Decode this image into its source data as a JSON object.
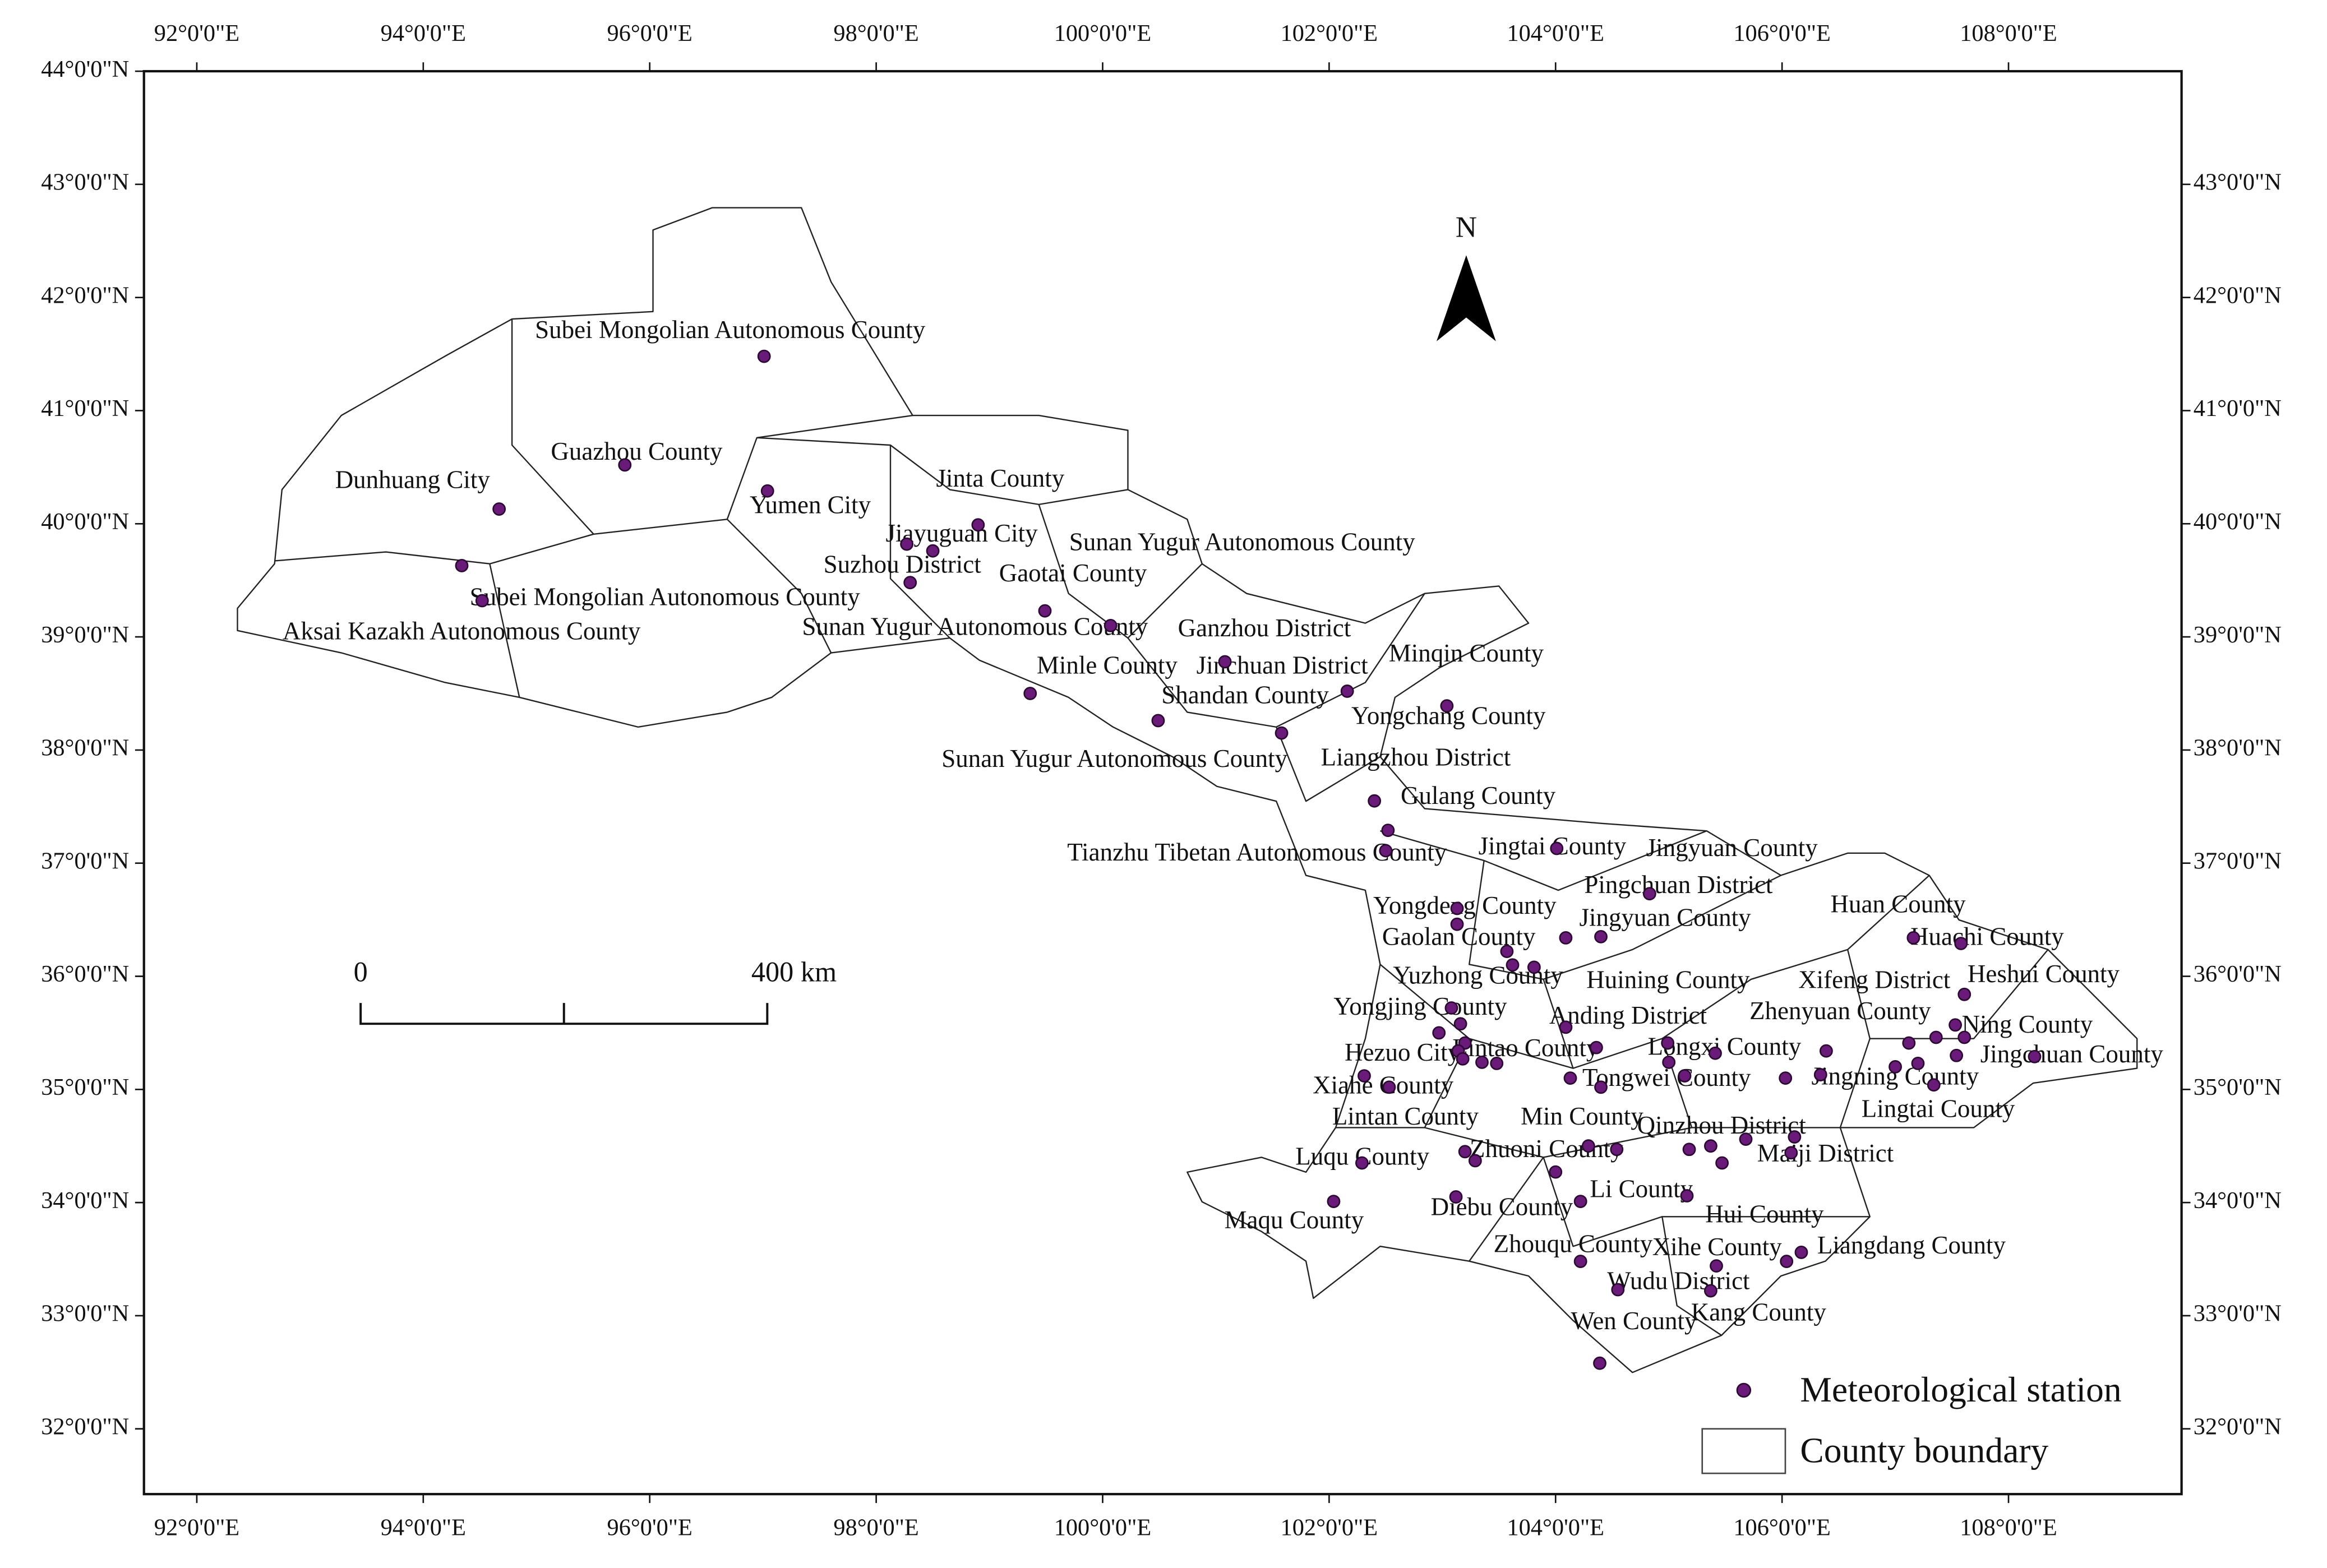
{
  "axes": {
    "lon_ticks": [
      {
        "value": 92,
        "label": "92°0'0\"E"
      },
      {
        "value": 94,
        "label": "94°0'0\"E"
      },
      {
        "value": 96,
        "label": "96°0'0\"E"
      },
      {
        "value": 98,
        "label": "98°0'0\"E"
      },
      {
        "value": 100,
        "label": "100°0'0\"E"
      },
      {
        "value": 102,
        "label": "102°0'0\"E"
      },
      {
        "value": 104,
        "label": "104°0'0\"E"
      },
      {
        "value": 106,
        "label": "106°0'0\"E"
      },
      {
        "value": 108,
        "label": "108°0'0\"E"
      }
    ],
    "lat_ticks": [
      {
        "value": 32,
        "label": "32°0'0\"N"
      },
      {
        "value": 33,
        "label": "33°0'0\"N"
      },
      {
        "value": 34,
        "label": "34°0'0\"N"
      },
      {
        "value": 35,
        "label": "35°0'0\"N"
      },
      {
        "value": 36,
        "label": "36°0'0\"N"
      },
      {
        "value": 37,
        "label": "37°0'0\"N"
      },
      {
        "value": 38,
        "label": "38°0'0\"N"
      },
      {
        "value": 39,
        "label": "39°0'0\"N"
      },
      {
        "value": 40,
        "label": "40°0'0\"N"
      },
      {
        "value": 41,
        "label": "41°0'0\"N"
      },
      {
        "value": 42,
        "label": "42°0'0\"N"
      },
      {
        "value": 43,
        "label": "43°0'0\"N"
      },
      {
        "value": 44,
        "label": "44°0'0\"N"
      }
    ]
  },
  "north_label": "N",
  "scale_bar": {
    "labels": [
      "0",
      "400 km"
    ]
  },
  "legend": {
    "station": "Meteorological station",
    "boundary": "County boundary"
  },
  "county_labels": [
    "Subei Mongolian Autonomous County",
    "Guazhou County",
    "Dunhuang City",
    "Yumen City",
    "Jinta County",
    "Jiayuguan City",
    "Sunan Yugur Autonomous County",
    "Suzhou District",
    "Gaotai County",
    "Subei Mongolian Autonomous County",
    "Aksai Kazakh Autonomous County",
    "Sunan Yugur Autonomous County",
    "Ganzhou District",
    "Minqin County",
    "Minle County",
    "Jinchuan District",
    "Shandan County",
    "Yongchang County",
    "Sunan Yugur Autonomous County",
    "Liangzhou District",
    "Gulang County",
    "Tianzhu Tibetan Autonomous County",
    "Jingtai County",
    "Jingyuan County",
    "Pingchuan District",
    "Huan County",
    "Yongdeng County",
    "Jingyuan County",
    "Huachi County",
    "Gaolan County",
    "Yuzhong County",
    "Huining County",
    "Xifeng District",
    "Heshui County",
    "Yongjing County",
    "Anding District",
    "Zhenyuan County",
    "Ning County",
    "Hezuo City",
    "Lintao County",
    "Longxi County",
    "Jingchuan County",
    "Tongwei County",
    "Jingning County",
    "Xiahe County",
    "Lingtai County",
    "Lintan County",
    "Min County",
    "Qinzhou District",
    "Luqu County",
    "Zhuoni County",
    "Maiji District",
    "Li County",
    "Diebu County",
    "Hui County",
    "Maqu County",
    "Zhouqu County",
    "Xihe County",
    "Liangdang County",
    "Wudu District",
    "Wen County",
    "Kang County"
  ],
  "stations": [
    {
      "lon": 97.01,
      "lat": 41.48
    },
    {
      "lon": 95.78,
      "lat": 40.52
    },
    {
      "lon": 97.04,
      "lat": 40.29
    },
    {
      "lon": 94.67,
      "lat": 40.13
    },
    {
      "lon": 94.34,
      "lat": 39.63
    },
    {
      "lon": 94.52,
      "lat": 39.32
    },
    {
      "lon": 98.9,
      "lat": 39.99
    },
    {
      "lon": 98.27,
      "lat": 39.82
    },
    {
      "lon": 98.5,
      "lat": 39.76
    },
    {
      "lon": 98.3,
      "lat": 39.48
    },
    {
      "lon": 99.49,
      "lat": 39.23
    },
    {
      "lon": 100.07,
      "lat": 39.1
    },
    {
      "lon": 101.08,
      "lat": 38.78
    },
    {
      "lon": 99.36,
      "lat": 38.5
    },
    {
      "lon": 100.49,
      "lat": 38.26
    },
    {
      "lon": 102.16,
      "lat": 38.52
    },
    {
      "lon": 103.04,
      "lat": 38.39
    },
    {
      "lon": 101.58,
      "lat": 38.15
    },
    {
      "lon": 102.4,
      "lat": 37.55
    },
    {
      "lon": 102.52,
      "lat": 37.29
    },
    {
      "lon": 102.5,
      "lat": 37.11
    },
    {
      "lon": 104.01,
      "lat": 37.13
    },
    {
      "lon": 104.83,
      "lat": 36.73
    },
    {
      "lon": 103.13,
      "lat": 36.6
    },
    {
      "lon": 103.13,
      "lat": 36.46
    },
    {
      "lon": 104.4,
      "lat": 36.35
    },
    {
      "lon": 104.09,
      "lat": 36.34
    },
    {
      "lon": 103.57,
      "lat": 36.22
    },
    {
      "lon": 103.62,
      "lat": 36.1
    },
    {
      "lon": 103.81,
      "lat": 36.08
    },
    {
      "lon": 107.16,
      "lat": 36.34
    },
    {
      "lon": 107.58,
      "lat": 36.29
    },
    {
      "lon": 107.61,
      "lat": 35.84
    },
    {
      "lon": 107.53,
      "lat": 35.57
    },
    {
      "lon": 107.36,
      "lat": 35.46
    },
    {
      "lon": 107.61,
      "lat": 35.46
    },
    {
      "lon": 107.54,
      "lat": 35.3
    },
    {
      "lon": 108.23,
      "lat": 35.29
    },
    {
      "lon": 107.12,
      "lat": 35.41
    },
    {
      "lon": 107.0,
      "lat": 35.2
    },
    {
      "lon": 107.2,
      "lat": 35.23
    },
    {
      "lon": 107.34,
      "lat": 35.04
    },
    {
      "lon": 106.39,
      "lat": 35.34
    },
    {
      "lon": 106.34,
      "lat": 35.13
    },
    {
      "lon": 106.03,
      "lat": 35.1
    },
    {
      "lon": 103.08,
      "lat": 35.72
    },
    {
      "lon": 103.16,
      "lat": 35.58
    },
    {
      "lon": 102.97,
      "lat": 35.5
    },
    {
      "lon": 103.2,
      "lat": 35.41
    },
    {
      "lon": 103.14,
      "lat": 35.34
    },
    {
      "lon": 103.18,
      "lat": 35.27
    },
    {
      "lon": 103.35,
      "lat": 35.24
    },
    {
      "lon": 103.48,
      "lat": 35.23
    },
    {
      "lon": 102.31,
      "lat": 35.12
    },
    {
      "lon": 104.09,
      "lat": 35.55
    },
    {
      "lon": 104.13,
      "lat": 35.1
    },
    {
      "lon": 104.4,
      "lat": 35.02
    },
    {
      "lon": 104.36,
      "lat": 35.37
    },
    {
      "lon": 104.99,
      "lat": 35.41
    },
    {
      "lon": 105.0,
      "lat": 35.24
    },
    {
      "lon": 105.14,
      "lat": 35.12
    },
    {
      "lon": 105.41,
      "lat": 35.32
    },
    {
      "lon": 102.53,
      "lat": 35.02
    },
    {
      "lon": 103.29,
      "lat": 34.37
    },
    {
      "lon": 102.29,
      "lat": 34.35
    },
    {
      "lon": 103.2,
      "lat": 34.45
    },
    {
      "lon": 104.29,
      "lat": 34.5
    },
    {
      "lon": 104.54,
      "lat": 34.47
    },
    {
      "lon": 104.0,
      "lat": 34.27
    },
    {
      "lon": 104.22,
      "lat": 34.01
    },
    {
      "lon": 105.18,
      "lat": 34.47
    },
    {
      "lon": 105.37,
      "lat": 34.5
    },
    {
      "lon": 105.47,
      "lat": 34.35
    },
    {
      "lon": 105.68,
      "lat": 34.56
    },
    {
      "lon": 106.08,
      "lat": 34.44
    },
    {
      "lon": 106.11,
      "lat": 34.58
    },
    {
      "lon": 105.16,
      "lat": 34.06
    },
    {
      "lon": 102.04,
      "lat": 34.01
    },
    {
      "lon": 103.12,
      "lat": 34.05
    },
    {
      "lon": 104.22,
      "lat": 33.48
    },
    {
      "lon": 104.55,
      "lat": 33.23
    },
    {
      "lon": 105.42,
      "lat": 33.44
    },
    {
      "lon": 105.37,
      "lat": 33.22
    },
    {
      "lon": 106.04,
      "lat": 33.48
    },
    {
      "lon": 106.17,
      "lat": 33.56
    },
    {
      "lon": 104.39,
      "lat": 32.58
    }
  ]
}
